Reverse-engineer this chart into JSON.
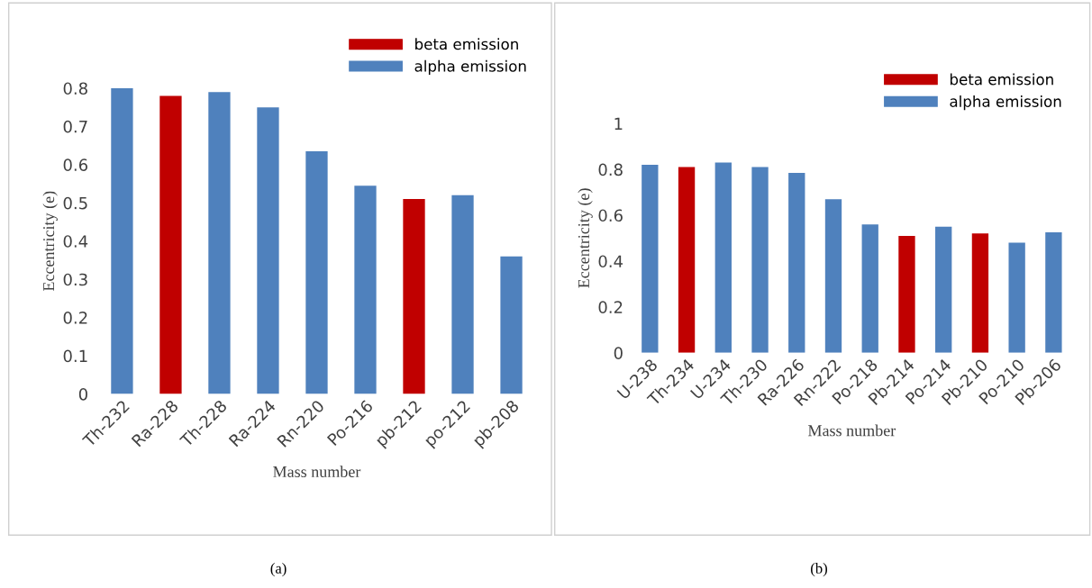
{
  "chart_data": [
    {
      "type": "bar",
      "ylabel": "Eccentricity (e)",
      "xlabel": "Mass number",
      "categories": [
        "Th-232",
        "Ra-228",
        "Th-228",
        "Ra-224",
        "Rn-220",
        "Po-216",
        "pb-212",
        "po-212",
        "pb-208"
      ],
      "series": [
        {
          "name": "beta emission",
          "color": "#c00000",
          "values": [
            null,
            0.78,
            null,
            null,
            null,
            null,
            0.51,
            null,
            null
          ]
        },
        {
          "name": "alpha emission",
          "color": "#4f81bd",
          "values": [
            0.8,
            null,
            0.79,
            0.75,
            0.635,
            0.545,
            null,
            0.52,
            0.36
          ]
        }
      ],
      "ylim": [
        0,
        0.8
      ],
      "yticks": [
        0,
        0.1,
        0.2,
        0.3,
        0.4,
        0.5,
        0.6,
        0.7,
        0.8
      ],
      "grid": false,
      "legend": "top right",
      "annotations": [
        "(a)"
      ]
    },
    {
      "type": "bar",
      "ylabel": "Eccentricity (e)",
      "xlabel": "Mass number",
      "categories": [
        "U-238",
        "Th-234",
        "U-234",
        "Th-230",
        "Ra-226",
        "Rn-222",
        "Po-218",
        "Pb-214",
        "Po-214",
        "Pb-210",
        "Po-210",
        "Pb-206"
      ],
      "series": [
        {
          "name": "beta emission",
          "color": "#c00000",
          "values": [
            null,
            0.81,
            null,
            null,
            null,
            null,
            null,
            0.51,
            null,
            0.52,
            null,
            null
          ]
        },
        {
          "name": "alpha emission",
          "color": "#4f81bd",
          "values": [
            0.82,
            null,
            0.83,
            0.81,
            0.785,
            0.67,
            0.56,
            null,
            0.55,
            null,
            0.48,
            0.525
          ]
        }
      ],
      "ylim": [
        0,
        1
      ],
      "yticks": [
        0,
        0.2,
        0.4,
        0.6,
        0.8,
        1
      ],
      "grid": false,
      "legend": "top right",
      "annotations": [
        "(b)"
      ]
    }
  ]
}
